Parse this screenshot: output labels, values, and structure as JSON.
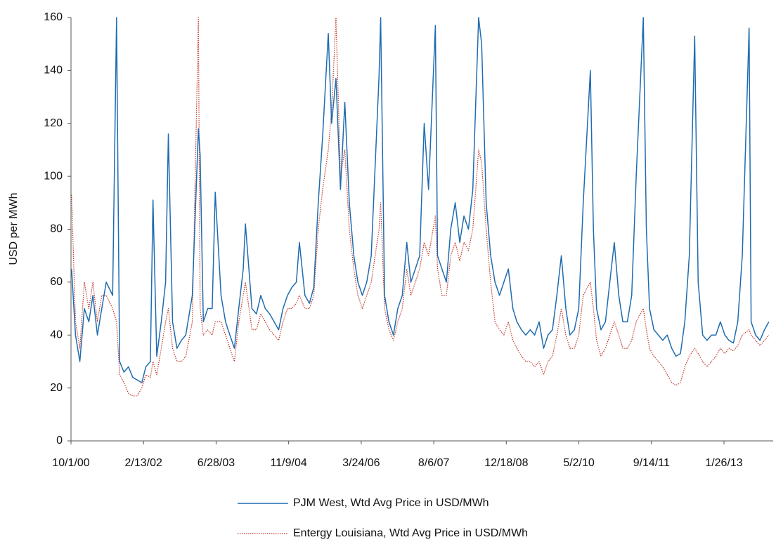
{
  "chart_data": {
    "type": "line",
    "ylabel": "USD per MWh",
    "ylim": [
      0,
      160
    ],
    "yticks": [
      0,
      20,
      40,
      60,
      80,
      100,
      120,
      140,
      160
    ],
    "xlim": [
      "2000-10-01",
      "2013-12-31"
    ],
    "xticks": [
      {
        "value": "2000-10-01",
        "label": "10/1/00"
      },
      {
        "value": "2002-02-13",
        "label": "2/13/02"
      },
      {
        "value": "2003-06-28",
        "label": "6/28/03"
      },
      {
        "value": "2004-11-09",
        "label": "11/9/04"
      },
      {
        "value": "2006-03-24",
        "label": "3/24/06"
      },
      {
        "value": "2007-08-06",
        "label": "8/6/07"
      },
      {
        "value": "2008-12-18",
        "label": "12/18/08"
      },
      {
        "value": "2010-05-02",
        "label": "5/2/10"
      },
      {
        "value": "2011-09-14",
        "label": "9/14/11"
      },
      {
        "value": "2013-01-26",
        "label": "1/26/13"
      }
    ],
    "x": [
      "2000-10-05",
      "2000-11-01",
      "2000-12-01",
      "2001-01-01",
      "2001-02-01",
      "2001-03-01",
      "2001-04-01",
      "2001-05-01",
      "2001-06-01",
      "2001-07-15",
      "2001-08-11",
      "2001-09-01",
      "2001-10-01",
      "2001-11-01",
      "2001-12-01",
      "2002-01-01",
      "2002-02-01",
      "2002-03-01",
      "2002-04-01",
      "2002-04-19",
      "2002-05-15",
      "2002-06-15",
      "2002-07-15",
      "2002-08-03",
      "2002-09-01",
      "2002-10-01",
      "2002-11-01",
      "2002-12-01",
      "2003-01-15",
      "2003-02-26",
      "2003-03-10",
      "2003-04-01",
      "2003-05-01",
      "2003-06-01",
      "2003-06-22",
      "2003-08-01",
      "2003-09-01",
      "2003-10-01",
      "2003-11-01",
      "2003-12-01",
      "2004-01-01",
      "2004-01-16",
      "2004-03-01",
      "2004-04-01",
      "2004-05-01",
      "2004-06-01",
      "2004-07-01",
      "2004-08-01",
      "2004-09-01",
      "2004-10-01",
      "2004-11-01",
      "2004-12-01",
      "2005-01-01",
      "2005-01-22",
      "2005-03-01",
      "2005-04-01",
      "2005-05-01",
      "2005-06-01",
      "2005-07-01",
      "2005-08-09",
      "2005-09-01",
      "2005-10-01",
      "2005-11-01",
      "2005-12-01",
      "2006-01-01",
      "2006-02-01",
      "2006-03-01",
      "2006-04-01",
      "2006-05-01",
      "2006-06-01",
      "2006-07-25",
      "2006-08-05",
      "2006-09-01",
      "2006-10-01",
      "2006-11-01",
      "2006-12-01",
      "2007-01-01",
      "2007-02-01",
      "2007-03-01",
      "2007-04-01",
      "2007-05-01",
      "2007-06-01",
      "2007-07-01",
      "2007-08-17",
      "2007-09-01",
      "2007-10-01",
      "2007-11-01",
      "2007-12-01",
      "2008-01-01",
      "2008-02-01",
      "2008-03-01",
      "2008-04-01",
      "2008-05-01",
      "2008-06-10",
      "2008-07-01",
      "2008-08-01",
      "2008-09-01",
      "2008-10-01",
      "2008-11-01",
      "2008-12-01",
      "2009-01-01",
      "2009-02-01",
      "2009-03-01",
      "2009-04-01",
      "2009-05-01",
      "2009-06-01",
      "2009-07-01",
      "2009-08-01",
      "2009-09-01",
      "2009-10-01",
      "2009-11-01",
      "2009-12-01",
      "2010-01-01",
      "2010-02-01",
      "2010-03-01",
      "2010-04-01",
      "2010-05-01",
      "2010-06-01",
      "2010-07-20",
      "2010-08-10",
      "2010-09-01",
      "2010-10-01",
      "2010-11-01",
      "2010-12-01",
      "2011-01-01",
      "2011-02-01",
      "2011-03-01",
      "2011-04-01",
      "2011-05-01",
      "2011-06-01",
      "2011-07-20",
      "2011-08-10",
      "2011-09-01",
      "2011-10-01",
      "2011-11-01",
      "2011-12-01",
      "2012-01-01",
      "2012-02-01",
      "2012-03-01",
      "2012-04-01",
      "2012-05-01",
      "2012-06-01",
      "2012-07-08",
      "2012-08-01",
      "2012-09-01",
      "2012-10-01",
      "2012-11-01",
      "2012-12-01",
      "2013-01-01",
      "2013-02-01",
      "2013-03-01",
      "2013-04-01",
      "2013-05-01",
      "2013-06-01",
      "2013-07-18",
      "2013-08-01",
      "2013-09-01",
      "2013-10-01",
      "2013-11-01",
      "2013-12-01"
    ],
    "series": [
      {
        "name": "PJM West, Wtd Avg Price in USD/MWh",
        "color": "#1f6cb0",
        "style": "solid",
        "values": [
          65,
          40,
          30,
          50,
          45,
          55,
          40,
          50,
          60,
          55,
          160,
          30,
          26,
          28,
          24,
          23,
          22,
          28,
          30,
          91,
          32,
          45,
          60,
          116,
          45,
          35,
          38,
          40,
          55,
          118,
          108,
          45,
          50,
          50,
          94,
          55,
          45,
          40,
          35,
          50,
          65,
          82,
          50,
          48,
          55,
          50,
          48,
          45,
          42,
          50,
          55,
          58,
          60,
          75,
          55,
          52,
          58,
          90,
          115,
          154,
          120,
          137,
          95,
          128,
          90,
          70,
          60,
          55,
          60,
          70,
          138,
          160,
          55,
          45,
          40,
          50,
          55,
          75,
          60,
          65,
          70,
          120,
          95,
          157,
          70,
          65,
          60,
          80,
          90,
          75,
          85,
          80,
          95,
          160,
          150,
          90,
          70,
          60,
          55,
          60,
          65,
          50,
          45,
          42,
          40,
          42,
          40,
          45,
          35,
          40,
          42,
          55,
          70,
          50,
          40,
          42,
          50,
          90,
          140,
          80,
          50,
          42,
          45,
          60,
          75,
          55,
          45,
          45,
          55,
          100,
          160,
          80,
          50,
          42,
          40,
          38,
          40,
          35,
          32,
          33,
          45,
          70,
          153,
          60,
          40,
          38,
          40,
          40,
          45,
          40,
          38,
          37,
          45,
          70,
          156,
          45,
          40,
          38,
          42,
          45
        ]
      },
      {
        "name": "Entergy Louisiana, Wtd Avg Price in USD/MWh",
        "color": "#c0392b",
        "style": "dotted",
        "values": [
          93,
          45,
          35,
          60,
          50,
          60,
          45,
          55,
          55,
          50,
          45,
          25,
          22,
          18,
          17,
          17,
          20,
          25,
          24,
          30,
          25,
          35,
          45,
          50,
          35,
          30,
          30,
          32,
          45,
          160,
          50,
          40,
          42,
          40,
          45,
          45,
          40,
          35,
          30,
          45,
          55,
          60,
          42,
          42,
          48,
          45,
          42,
          40,
          38,
          45,
          50,
          50,
          52,
          55,
          50,
          50,
          55,
          80,
          95,
          110,
          125,
          160,
          100,
          110,
          80,
          65,
          55,
          50,
          55,
          60,
          80,
          90,
          50,
          42,
          38,
          45,
          50,
          65,
          55,
          60,
          65,
          75,
          70,
          85,
          65,
          55,
          55,
          70,
          75,
          68,
          75,
          72,
          80,
          110,
          105,
          80,
          60,
          45,
          42,
          40,
          45,
          38,
          35,
          32,
          30,
          30,
          28,
          30,
          25,
          30,
          32,
          40,
          50,
          40,
          35,
          35,
          40,
          55,
          60,
          50,
          38,
          32,
          35,
          40,
          45,
          40,
          35,
          35,
          38,
          45,
          50,
          42,
          35,
          32,
          30,
          28,
          25,
          22,
          21,
          22,
          28,
          32,
          35,
          33,
          30,
          28,
          30,
          32,
          35,
          33,
          35,
          34,
          36,
          40,
          42,
          40,
          38,
          36,
          38,
          40
        ]
      }
    ]
  }
}
